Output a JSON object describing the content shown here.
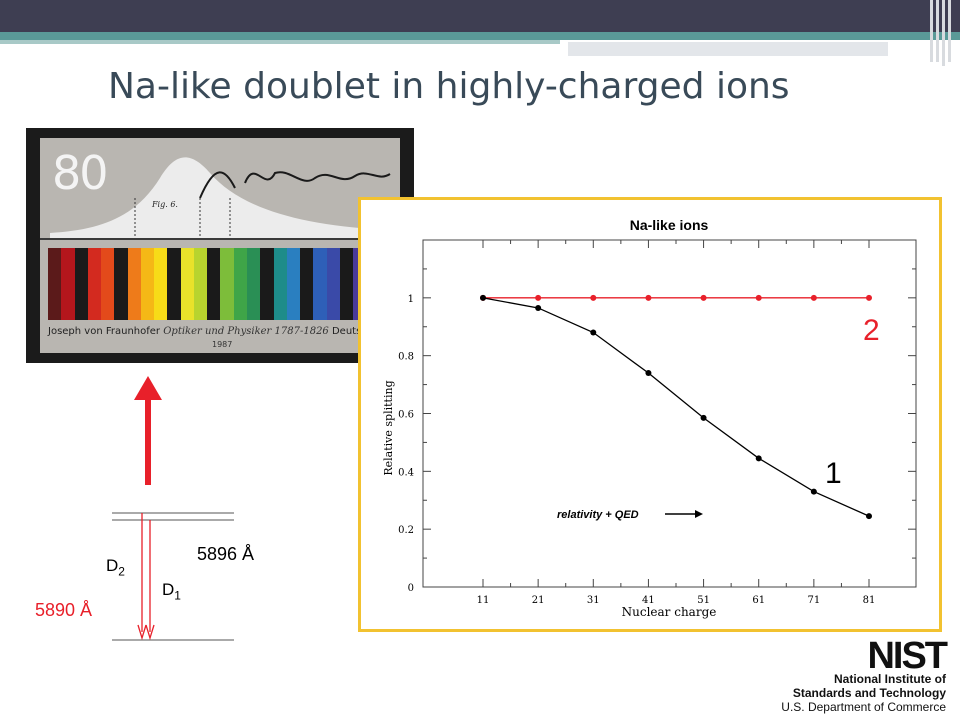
{
  "slide": {
    "title": "Na-like doublet in highly-charged ions"
  },
  "stamp": {
    "value": "80",
    "caption_name": "Joseph von Fraunhofer",
    "caption_role": "Optiker und Physiker 1787-1826",
    "caption_country": "Deutsche Bunde",
    "year": "1987",
    "fig_label": "Fig. 6."
  },
  "energy_diagram": {
    "d2_label": "D",
    "d2_sub": "2",
    "d1_label": "D",
    "d1_sub": "1",
    "wavelength_d2": "5890 Å",
    "wavelength_d1": "5896 Å",
    "colors": {
      "d2": "#e8202a",
      "d1": "#000000",
      "arrow": "#e8202a"
    }
  },
  "chart_data": {
    "type": "line",
    "title": "Na-like ions",
    "xlabel": "Nuclear charge",
    "ylabel": "Relative splitting",
    "xlim": [
      11,
      81
    ],
    "ylim": [
      0,
      1.2
    ],
    "x": [
      11,
      21,
      31,
      41,
      51,
      61,
      71,
      81
    ],
    "yticks": [
      0,
      0.2,
      0.4,
      0.6,
      0.8,
      1
    ],
    "series": [
      {
        "name": "2",
        "color": "#e8202a",
        "values": [
          1.0,
          1.0,
          1.0,
          1.0,
          1.0,
          1.0,
          1.0,
          1.0
        ]
      },
      {
        "name": "1",
        "color": "#000000",
        "values": [
          1.0,
          0.965,
          0.88,
          0.74,
          0.585,
          0.445,
          0.33,
          0.245
        ]
      }
    ],
    "annotation": "relativity + QED",
    "grid": false
  },
  "logo": {
    "text": "NIST",
    "line1": "National Institute of",
    "line2": "Standards and Technology",
    "line3": "U.S. Department of Commerce"
  }
}
